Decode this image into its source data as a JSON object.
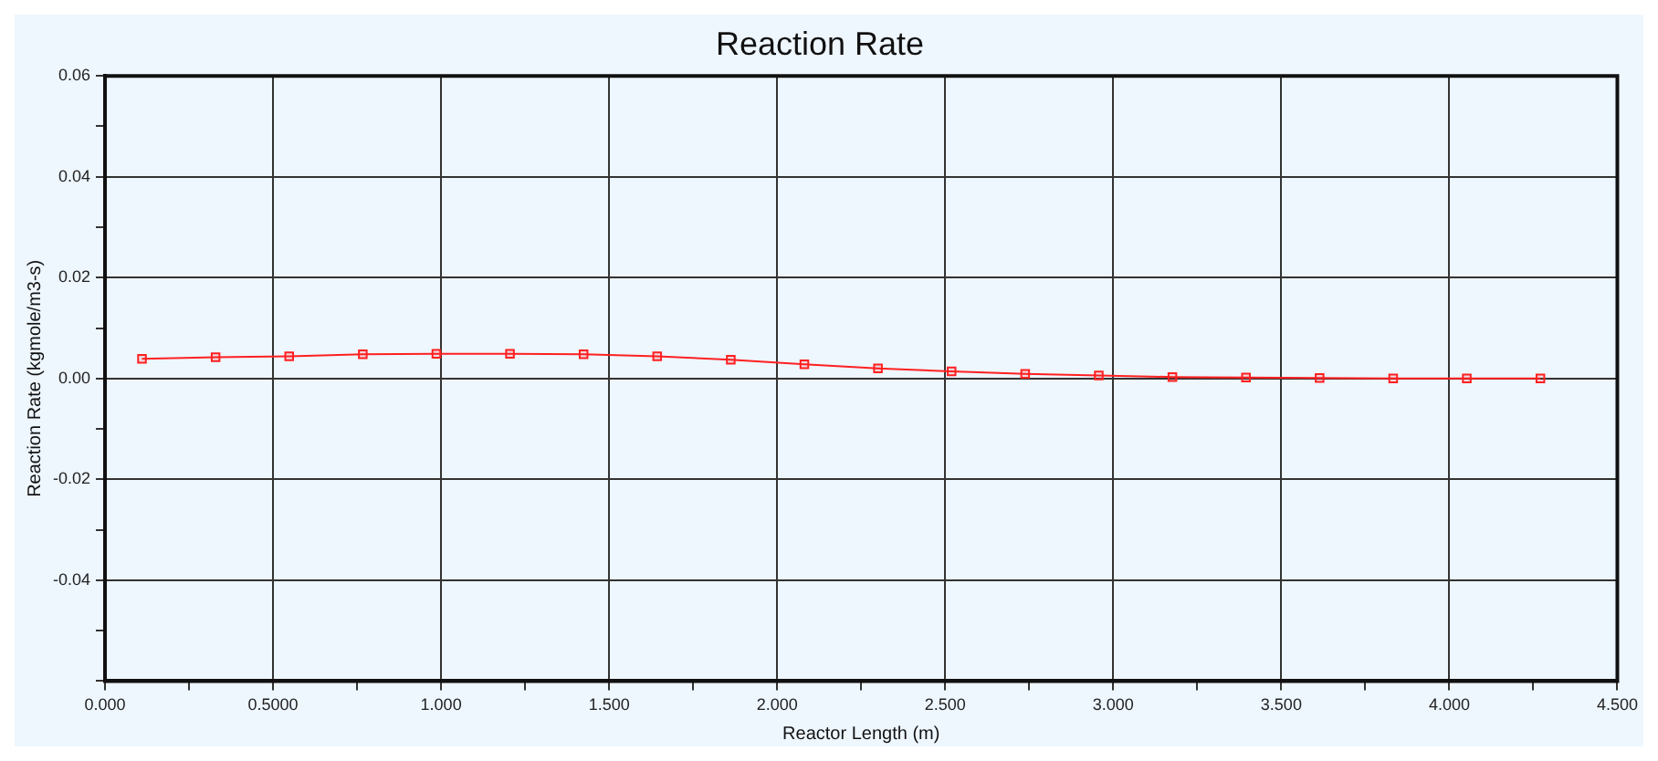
{
  "chart_data": {
    "type": "line",
    "title": "Reaction Rate",
    "xlabel": "Reactor Length (m)",
    "ylabel": "Reaction Rate (kgmole/m3-s)",
    "x": [
      0.11,
      0.329,
      0.548,
      0.767,
      0.986,
      1.205,
      1.424,
      1.643,
      1.862,
      2.081,
      2.3,
      2.519,
      2.738,
      2.957,
      3.176,
      3.395,
      3.614,
      3.833,
      4.052,
      4.271
    ],
    "series": [
      {
        "color": "#ff2020",
        "values": [
          0.0039,
          0.0042,
          0.0044,
          0.0048,
          0.0049,
          0.0049,
          0.0048,
          0.0044,
          0.0037,
          0.0028,
          0.002,
          0.0014,
          0.0009,
          0.0006,
          0.0003,
          0.0002,
          0.0001,
          0,
          0,
          0
        ]
      }
    ],
    "xlim": [
      0,
      4.5
    ],
    "xticks": [
      {
        "value": 0,
        "label": "0.000"
      },
      {
        "value": 0.25,
        "label": null
      },
      {
        "value": 0.5,
        "label": "0.5000"
      },
      {
        "value": 0.75,
        "label": null
      },
      {
        "value": 1,
        "label": "1.000"
      },
      {
        "value": 1.25,
        "label": null
      },
      {
        "value": 1.5,
        "label": "1.500"
      },
      {
        "value": 1.75,
        "label": null
      },
      {
        "value": 2,
        "label": "2.000"
      },
      {
        "value": 2.25,
        "label": null
      },
      {
        "value": 2.5,
        "label": "2.500"
      },
      {
        "value": 2.75,
        "label": null
      },
      {
        "value": 3,
        "label": "3.000"
      },
      {
        "value": 3.25,
        "label": null
      },
      {
        "value": 3.5,
        "label": "3.500"
      },
      {
        "value": 3.75,
        "label": null
      },
      {
        "value": 4,
        "label": "4.000"
      },
      {
        "value": 4.25,
        "label": null
      },
      {
        "value": 4.5,
        "label": "4.500"
      }
    ],
    "ylim": [
      -0.06,
      0.06
    ],
    "yticks": [
      {
        "value": -0.06,
        "label": null
      },
      {
        "value": -0.05,
        "label": null
      },
      {
        "value": -0.04,
        "label": "-0.04"
      },
      {
        "value": -0.03,
        "label": null
      },
      {
        "value": -0.02,
        "label": "-0.02"
      },
      {
        "value": -0.01,
        "label": null
      },
      {
        "value": 0,
        "label": "0.00"
      },
      {
        "value": 0.01,
        "label": null
      },
      {
        "value": 0.02,
        "label": "0.02"
      },
      {
        "value": 0.03,
        "label": null
      },
      {
        "value": 0.04,
        "label": "0.04"
      },
      {
        "value": 0.05,
        "label": null
      },
      {
        "value": 0.06,
        "label": "0.06"
      }
    ],
    "grid": true,
    "marker": "square",
    "line_style": "solid",
    "legend": false
  }
}
